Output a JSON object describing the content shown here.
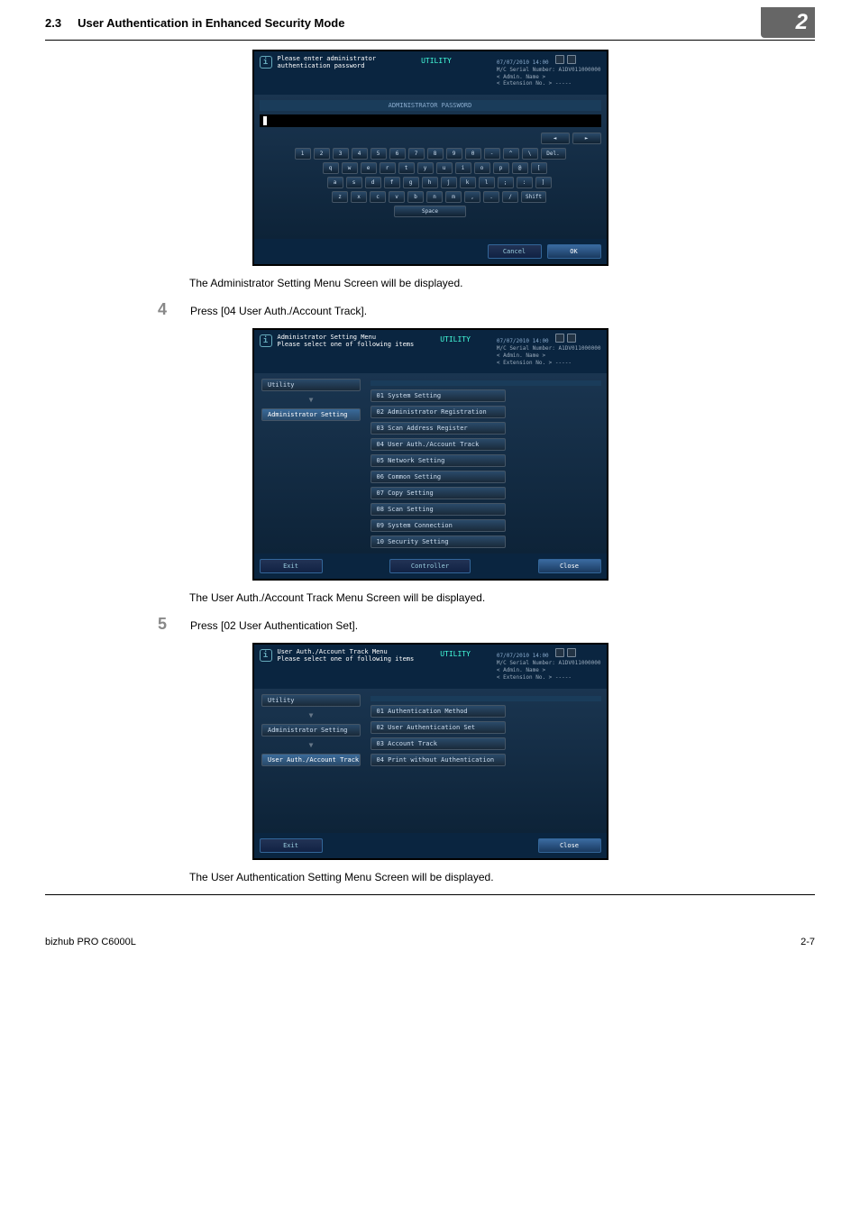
{
  "header": {
    "section_num": "2.3",
    "section_title": "User Authentication in Enhanced Security Mode",
    "chapter": "2"
  },
  "body": {
    "text1": "The Administrator Setting Menu Screen will be displayed.",
    "step4_num": "4",
    "step4_text": "Press [04 User Auth./Account Track].",
    "text2": "The User Auth./Account Track Menu Screen will be displayed.",
    "step5_num": "5",
    "step5_text": "Press [02 User Authentication Set].",
    "text3": "The User Authentication Setting Menu Screen will be displayed."
  },
  "footer": {
    "product": "bizhub PRO C6000L",
    "page": "2-7"
  },
  "screen_common": {
    "utility_tab": "UTILITY",
    "datetime": "07/07/2010 14:00",
    "serial_label": "M/C Serial Number:",
    "serial_value": "A1DV011000000",
    "admin_name_label": "< Admin. Name >",
    "ext_label": "< Extension No. >",
    "ext_value": "-----"
  },
  "screen1": {
    "prompt_line1": "Please enter administrator",
    "prompt_line2": "authentication password",
    "password_header": "ADMINISTRATOR PASSWORD",
    "keys_row1": [
      "1",
      "2",
      "3",
      "4",
      "5",
      "6",
      "7",
      "8",
      "9",
      "0",
      "-",
      "^",
      "\\"
    ],
    "del": "Del.",
    "keys_row2": [
      "q",
      "w",
      "e",
      "r",
      "t",
      "y",
      "u",
      "i",
      "o",
      "p",
      "@",
      "["
    ],
    "keys_row3": [
      "a",
      "s",
      "d",
      "f",
      "g",
      "h",
      "j",
      "k",
      "l",
      ";",
      ":",
      "]"
    ],
    "keys_row4": [
      "z",
      "x",
      "c",
      "v",
      "b",
      "n",
      "m",
      ",",
      ".",
      "/"
    ],
    "shift": "Shift",
    "space": "Space",
    "arrow_left": "◄",
    "arrow_right": "►",
    "cancel": "Cancel",
    "ok": "OK"
  },
  "screen2": {
    "prompt_line1": "Administrator Setting Menu",
    "prompt_line2": "Please select one of following items",
    "nav_utility": "Utility",
    "nav_admin": "Administrator Setting",
    "items": [
      "01 System Setting",
      "02 Administrator Registration",
      "03 Scan Address Register",
      "04 User Auth./Account Track",
      "05 Network Setting",
      "06 Common Setting",
      "07 Copy Setting",
      "08 Scan Setting",
      "09 System Connection",
      "10 Security Setting"
    ],
    "exit": "Exit",
    "controller": "Controller",
    "close": "Close"
  },
  "screen3": {
    "prompt_line1": "User Auth./Account Track Menu",
    "prompt_line2": "Please select one of following items",
    "nav_utility": "Utility",
    "nav_admin": "Administrator Setting",
    "nav_track": "User Auth./Account Track",
    "items": [
      "01 Authentication Method",
      "02 User Authentication Set",
      "03 Account Track",
      "04 Print without Authentication"
    ],
    "exit": "Exit",
    "close": "Close"
  }
}
